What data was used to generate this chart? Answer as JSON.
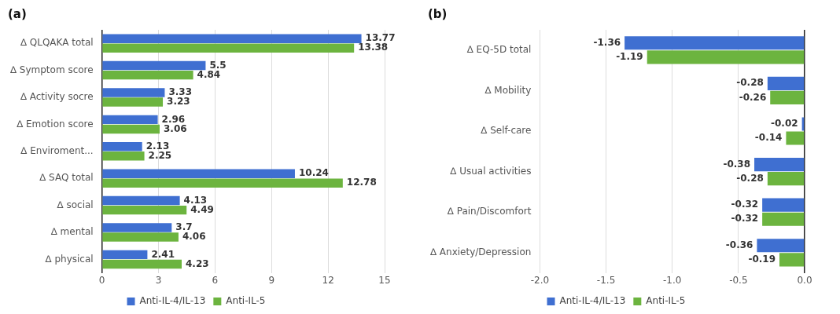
{
  "chart_data": [
    {
      "type": "bar",
      "title": "(a)",
      "orientation": "horizontal",
      "categories": [
        "∆ QLQAKA total",
        "∆ Symptom score",
        "∆ Activity socre",
        "∆ Emotion score",
        "∆ Enviroment...",
        "∆ SAQ total",
        "∆ social",
        "∆ mental",
        "∆ physical"
      ],
      "series": [
        {
          "name": "Anti-IL-4/IL-13",
          "color": "#3f6fd1",
          "values": [
            13.77,
            5.5,
            3.33,
            2.96,
            2.13,
            10.24,
            4.13,
            3.7,
            2.41
          ]
        },
        {
          "name": "Anti-IL-5",
          "color": "#6cb43f",
          "values": [
            13.38,
            4.84,
            3.23,
            3.06,
            2.25,
            12.78,
            4.49,
            4.06,
            4.23
          ]
        }
      ],
      "xlim": [
        0,
        15
      ],
      "xticks": [
        0,
        3,
        6,
        9,
        12,
        15
      ],
      "grid": "x",
      "legend": "bottom",
      "data_labels": true
    },
    {
      "type": "bar",
      "title": "(b)",
      "orientation": "horizontal",
      "categories": [
        "∆ EQ-5D total",
        "∆ Mobility",
        "∆ Self-care",
        "∆ Usual activities",
        "∆ Pain/Discomfort",
        "∆ Anxiety/Depression"
      ],
      "series": [
        {
          "name": "Anti-IL-4/IL-13",
          "color": "#3f6fd1",
          "values": [
            -1.36,
            -0.28,
            -0.02,
            -0.38,
            -0.32,
            -0.36
          ]
        },
        {
          "name": "Anti-IL-5",
          "color": "#6cb43f",
          "values": [
            -1.19,
            -0.26,
            -0.14,
            -0.28,
            -0.32,
            -0.19
          ]
        }
      ],
      "xlim": [
        -2,
        0
      ],
      "xticks": [
        {
          "value": -2,
          "label": "-2.0"
        },
        {
          "value": -1.5,
          "label": "-1.5"
        },
        {
          "value": -1,
          "label": "-1.0"
        },
        {
          "value": -0.5,
          "label": "-0.5"
        },
        {
          "value": 0,
          "label": "0.0"
        }
      ],
      "grid": "x",
      "legend": "bottom",
      "data_labels": true
    }
  ]
}
